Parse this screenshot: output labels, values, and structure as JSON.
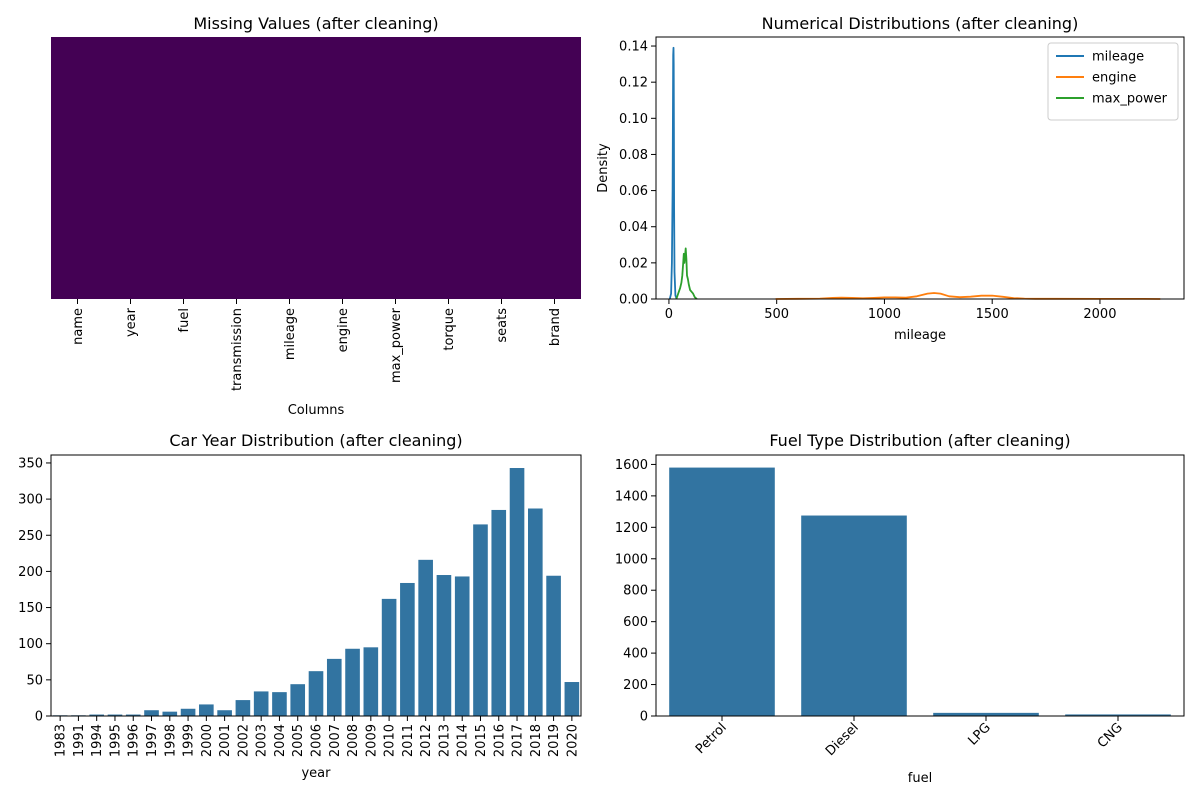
{
  "chart_data": [
    {
      "type": "heatmap",
      "title": "Missing Values (after cleaning)",
      "xlabel": "Columns",
      "ylabel": "",
      "columns": [
        "name",
        "year",
        "fuel",
        "transmission",
        "mileage",
        "engine",
        "max_power",
        "torque",
        "seats",
        "brand"
      ],
      "fill_color": "#440154",
      "colorbar": false
    },
    {
      "type": "line",
      "title": "Numerical Distributions (after cleaning)",
      "xlabel": "mileage",
      "ylabel": "Density",
      "xlim": [
        -60,
        2390
      ],
      "ylim": [
        0,
        0.145
      ],
      "xticks": [
        0,
        500,
        1000,
        1500,
        2000
      ],
      "yticks": [
        0.0,
        0.02,
        0.04,
        0.06,
        0.08,
        0.1,
        0.12,
        0.14
      ],
      "ytick_labels": [
        "0.00",
        "0.02",
        "0.04",
        "0.06",
        "0.08",
        "0.10",
        "0.12",
        "0.14"
      ],
      "legend": "top-right",
      "series": [
        {
          "name": "mileage",
          "color": "#1f77b4",
          "x": [
            4,
            10,
            14,
            17,
            19,
            20,
            21,
            22,
            23,
            24,
            26,
            30,
            36
          ],
          "y": [
            0,
            0.003,
            0.02,
            0.06,
            0.11,
            0.135,
            0.139,
            0.13,
            0.095,
            0.05,
            0.015,
            0.002,
            0
          ]
        },
        {
          "name": "engine",
          "color": "#ff7f0e",
          "x": [
            495,
            600,
            700,
            760,
            800,
            850,
            900,
            950,
            1000,
            1050,
            1100,
            1150,
            1200,
            1230,
            1260,
            1300,
            1350,
            1400,
            1450,
            1500,
            1550,
            1600,
            1650,
            1700,
            1800,
            2000,
            2200,
            2280
          ],
          "y": [
            0,
            0.0001,
            0.0002,
            0.0006,
            0.0008,
            0.0006,
            0.0004,
            0.0006,
            0.0009,
            0.0009,
            0.0007,
            0.0015,
            0.003,
            0.0033,
            0.003,
            0.0015,
            0.001,
            0.0013,
            0.0018,
            0.0019,
            0.0012,
            0.0005,
            0.0002,
            0.0001,
            0.0001,
            5e-05,
            3e-05,
            0
          ]
        },
        {
          "name": "max_power",
          "color": "#2ca02c",
          "x": [
            34,
            40,
            46,
            52,
            58,
            62,
            66,
            69,
            72,
            75,
            78,
            81,
            84,
            88,
            92,
            98,
            105,
            112,
            120,
            130
          ],
          "y": [
            0,
            0.002,
            0.004,
            0.006,
            0.009,
            0.013,
            0.02,
            0.025,
            0.02,
            0.024,
            0.028,
            0.022,
            0.013,
            0.011,
            0.008,
            0.005,
            0.004,
            0.003,
            0.001,
            0
          ]
        }
      ]
    },
    {
      "type": "bar",
      "title": "Car Year Distribution (after cleaning)",
      "xlabel": "year",
      "ylabel": "",
      "color": "#3274a1",
      "ylim": [
        0,
        361
      ],
      "yticks": [
        0,
        50,
        100,
        150,
        200,
        250,
        300,
        350
      ],
      "categories": [
        "1983",
        "1991",
        "1994",
        "1995",
        "1996",
        "1997",
        "1998",
        "1999",
        "2000",
        "2001",
        "2002",
        "2003",
        "2004",
        "2005",
        "2006",
        "2007",
        "2008",
        "2009",
        "2010",
        "2011",
        "2012",
        "2013",
        "2014",
        "2015",
        "2016",
        "2017",
        "2018",
        "2019",
        "2020"
      ],
      "values": [
        1,
        1,
        2,
        2,
        2,
        8,
        6,
        10,
        16,
        8,
        22,
        34,
        33,
        44,
        62,
        79,
        93,
        95,
        162,
        184,
        216,
        195,
        193,
        265,
        285,
        343,
        287,
        194,
        47
      ]
    },
    {
      "type": "bar",
      "title": "Fuel Type Distribution (after cleaning)",
      "xlabel": "fuel",
      "ylabel": "",
      "color": "#3274a1",
      "ylim": [
        0,
        1660
      ],
      "yticks": [
        0,
        200,
        400,
        600,
        800,
        1000,
        1200,
        1400,
        1600
      ],
      "categories": [
        "Petrol",
        "Diesel",
        "LPG",
        "CNG"
      ],
      "values": [
        1580,
        1275,
        20,
        10
      ]
    }
  ]
}
